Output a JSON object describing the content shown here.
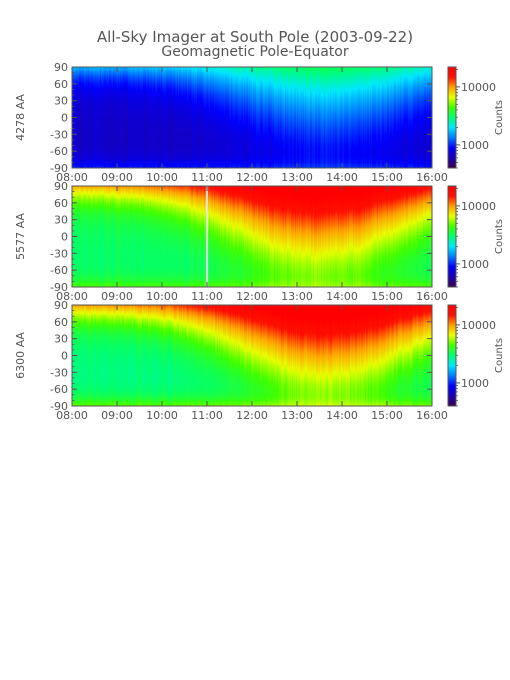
{
  "figure": {
    "title": "All-Sky Imager at South Pole (2003-09-22)",
    "subtitle": "Geomagnetic Pole-Equator"
  },
  "colors": {
    "text": "#555555",
    "colormap": [
      "#3a0050",
      "#1a00b0",
      "#0000ff",
      "#007bff",
      "#00e8ff",
      "#00ff70",
      "#40ff00",
      "#e8ff00",
      "#ffa000",
      "#ff1000",
      "#ff0000"
    ]
  },
  "chart_data": [
    {
      "type": "heatmap",
      "ylabel": "4278 AA",
      "x_tick_labels": [
        "08:00",
        "09:00",
        "10:00",
        "11:00",
        "12:00",
        "13:00",
        "14:00",
        "15:00",
        "16:00"
      ],
      "y_tick_labels": [
        "90",
        "60",
        "30",
        "0",
        "-30",
        "-60",
        "-90"
      ],
      "xlim": [
        "08:00",
        "16:00"
      ],
      "ylim": [
        -90,
        90
      ],
      "colorbar": {
        "label": "Counts",
        "scale": "log",
        "tick_labels": [
          "10000",
          "1000"
        ],
        "ticks": [
          10000,
          1000
        ],
        "range": [
          400,
          22000
        ]
      },
      "features": {
        "base_counts": 620,
        "edge_counts": 950,
        "top_counts": 1600,
        "top_peak_counts": 3200,
        "top_peak_time": "13:40"
      }
    },
    {
      "type": "heatmap",
      "ylabel": "5577 AA",
      "x_tick_labels": [
        "08:00",
        "09:00",
        "10:00",
        "11:00",
        "12:00",
        "13:00",
        "14:00",
        "15:00",
        "16:00"
      ],
      "y_tick_labels": [
        "90",
        "60",
        "30",
        "0",
        "-30",
        "-60",
        "-90"
      ],
      "xlim": [
        "08:00",
        "16:00"
      ],
      "ylim": [
        -90,
        90
      ],
      "colorbar": {
        "label": "Counts",
        "scale": "log",
        "tick_labels": [
          "10000",
          "1000"
        ],
        "ticks": [
          10000,
          1000
        ],
        "range": [
          400,
          22000
        ]
      },
      "features": {
        "base_counts": 2800,
        "edge_counts": 4500,
        "top_counts": 9000,
        "top_peak_counts": 28000,
        "top_peak_time": "13:30",
        "gap_time": "11:00"
      }
    },
    {
      "type": "heatmap",
      "ylabel": "6300 AA",
      "x_tick_labels": [
        "08:00",
        "09:00",
        "10:00",
        "11:00",
        "12:00",
        "13:00",
        "14:00",
        "15:00",
        "16:00"
      ],
      "y_tick_labels": [
        "90",
        "60",
        "30",
        "0",
        "-30",
        "-60",
        "-90"
      ],
      "xlim": [
        "08:00",
        "16:00"
      ],
      "ylim": [
        -90,
        90
      ],
      "colorbar": {
        "label": "Counts",
        "scale": "log",
        "tick_labels": [
          "10000",
          "1000"
        ],
        "ticks": [
          10000,
          1000
        ],
        "range": [
          400,
          22000
        ]
      },
      "features": {
        "base_counts": 2600,
        "edge_counts": 4800,
        "top_counts": 9500,
        "top_peak_counts": 30000,
        "top_peak_time": "13:40"
      }
    }
  ]
}
